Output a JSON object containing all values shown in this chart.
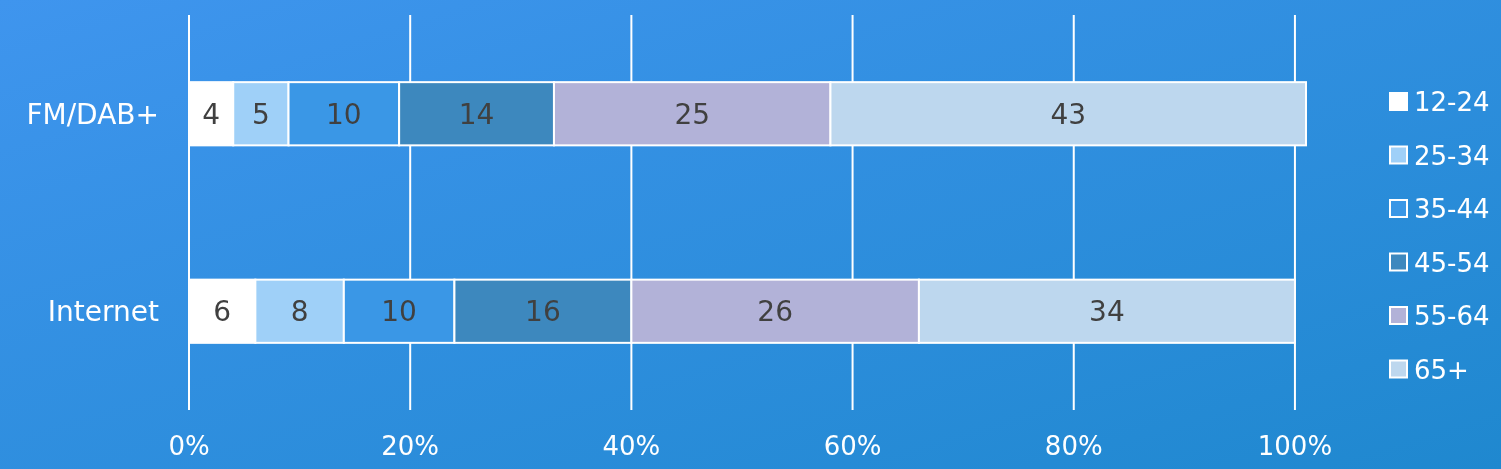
{
  "chart_data": {
    "type": "bar",
    "orientation": "horizontal",
    "stacked": true,
    "categories": [
      "FM/DAB+",
      "Internet"
    ],
    "series": [
      {
        "name": "12-24",
        "color": "#ffffff",
        "values": [
          4,
          6
        ]
      },
      {
        "name": "25-34",
        "color": "#9fd0f8",
        "values": [
          5,
          8
        ]
      },
      {
        "name": "35-44",
        "color": "#3a97e6",
        "values": [
          10,
          10
        ]
      },
      {
        "name": "45-54",
        "color": "#3d88be",
        "values": [
          14,
          16
        ]
      },
      {
        "name": "55-64",
        "color": "#b2b2d8",
        "values": [
          25,
          26
        ]
      },
      {
        "name": "65+",
        "color": "#bdd7ee",
        "values": [
          43,
          34
        ]
      }
    ],
    "xlim": [
      0,
      101
    ],
    "xticks": [
      {
        "value": 0,
        "label": "0%"
      },
      {
        "value": 20,
        "label": "20%"
      },
      {
        "value": 40,
        "label": "40%"
      },
      {
        "value": 60,
        "label": "60%"
      },
      {
        "value": 80,
        "label": "80%"
      },
      {
        "value": 100,
        "label": "100%"
      }
    ],
    "grid": "x",
    "legend": "right",
    "data_labels": true
  }
}
